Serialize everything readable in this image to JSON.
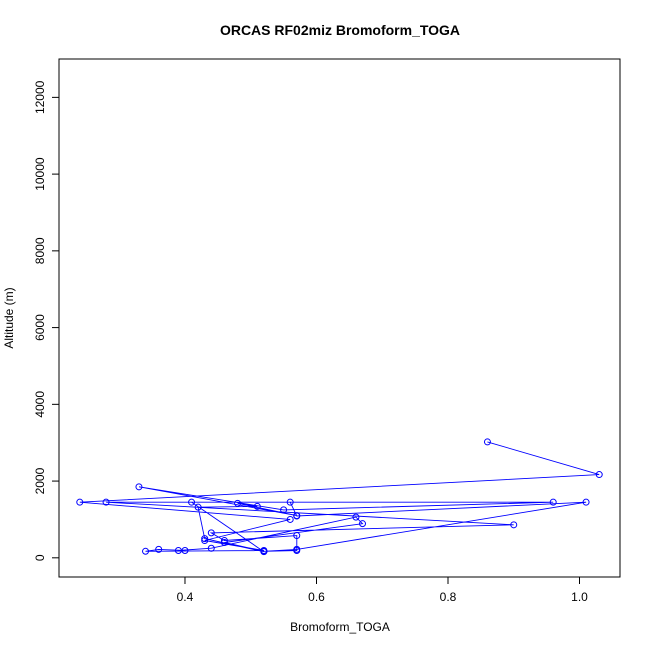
{
  "chart_data": {
    "type": "line",
    "title": "ORCAS RF02miz Bromoform_TOGA",
    "xlabel": "Bromoform_TOGA",
    "ylabel": "Altitude (m)",
    "xlim": [
      0.24,
      1.03
    ],
    "ylim": [
      0,
      12500
    ],
    "xticks": [
      0.4,
      0.6,
      0.8,
      1.0
    ],
    "xtick_labels": [
      "0.4",
      "0.6",
      "0.8",
      "1.0"
    ],
    "yticks": [
      0,
      2000,
      4000,
      6000,
      8000,
      10000,
      12000
    ],
    "ytick_labels": [
      "0",
      "2000",
      "4000",
      "6000",
      "8000",
      "10000",
      "12000"
    ],
    "grid": false,
    "style": {
      "series_color": "#0000ff",
      "marker": "open-circle"
    },
    "series": [
      {
        "x": [
          0.86,
          1.03,
          0.24,
          0.56,
          0.43,
          0.52,
          0.34,
          0.36,
          0.4,
          0.39,
          0.44,
          0.66,
          0.67,
          0.46,
          0.52,
          0.57,
          0.57,
          0.46,
          0.44,
          0.9,
          0.28,
          0.96,
          0.55,
          0.33,
          0.57,
          0.48,
          0.51,
          0.42,
          0.43,
          0.52,
          0.41,
          0.56,
          0.57,
          1.01,
          0.57,
          0.52
        ],
        "y": [
          3020,
          2170,
          1450,
          1000,
          450,
          190,
          170,
          220,
          190,
          190,
          250,
          1060,
          890,
          400,
          170,
          190,
          580,
          450,
          650,
          860,
          1450,
          1450,
          1250,
          1850,
          1100,
          1420,
          1340,
          1320,
          500,
          160,
          1450,
          1450,
          1090,
          1450,
          220,
          170
        ]
      }
    ]
  }
}
